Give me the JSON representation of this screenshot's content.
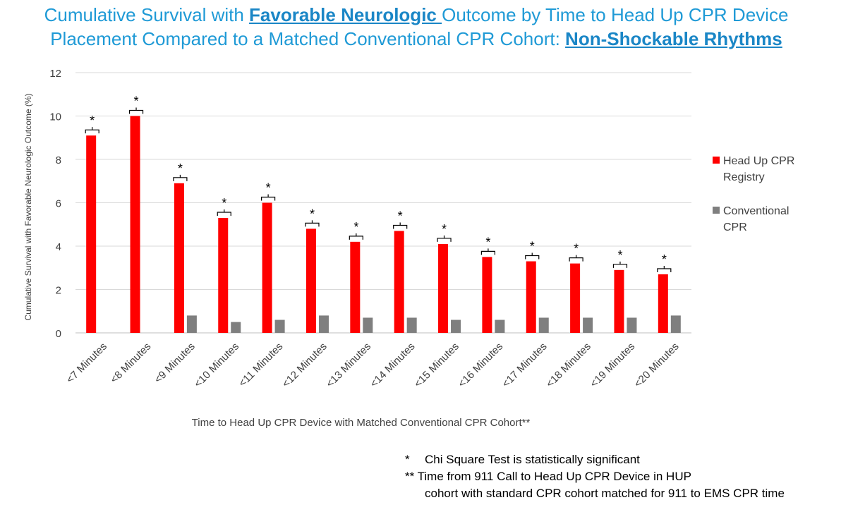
{
  "title": {
    "line1_before": "Cumulative Survival with ",
    "line1_highlight": "Favorable Neurologic ",
    "line1_after": "Outcome by Time to Head Up CPR Device",
    "line2_before": "Placement Compared to a Matched Conventional CPR Cohort: ",
    "line2_highlight": "Non-Shockable Rhythms"
  },
  "chart_data": {
    "type": "bar",
    "ylabel": "Cumulative Survival with Favorable Neurologic Outcome (%)",
    "xlabel": "Time to Head Up CPR Device with Matched Conventional CPR Cohort**",
    "ylim": [
      0,
      12
    ],
    "yticks": [
      "0",
      "2",
      "4",
      "6",
      "8",
      "10",
      "12"
    ],
    "grid": true,
    "legend_position": "right",
    "categories": [
      "<7 Minutes",
      "<8 Minutes",
      "<9 Minutes",
      "<10 Minutes",
      "<11 Minutes",
      "<12 Minutes",
      "<13 Minutes",
      "<14 Minutes",
      "<15 Minutes",
      "<16 Minutes",
      "<17 Minutes",
      "<18 Minutes",
      "<19 Minutes",
      "<20 Minutes"
    ],
    "series": [
      {
        "name": "Head Up CPR Registry",
        "legend_line1": "Head Up CPR",
        "legend_line2": "Registry",
        "color": "#ff0000",
        "values": [
          9.1,
          10.0,
          6.9,
          5.3,
          6.0,
          4.8,
          4.2,
          4.7,
          4.1,
          3.5,
          3.3,
          3.2,
          2.9,
          2.7
        ]
      },
      {
        "name": "Conventional CPR",
        "legend_line1": "Conventional",
        "legend_line2": "CPR",
        "color": "#7f7f7f",
        "values": [
          0,
          0,
          0.8,
          0.5,
          0.6,
          0.8,
          0.7,
          0.7,
          0.6,
          0.6,
          0.7,
          0.7,
          0.7,
          0.8
        ]
      }
    ],
    "significance_marker": "*"
  },
  "footnotes": {
    "f1_mark": "*",
    "f1_text": "Chi Square Test is statistically significant",
    "f2_mark": "**",
    "f2_text": "Time from 911 Call to Head Up CPR Device in HUP",
    "f2_text_cont": "cohort with standard CPR cohort matched for 911 to EMS CPR time"
  }
}
